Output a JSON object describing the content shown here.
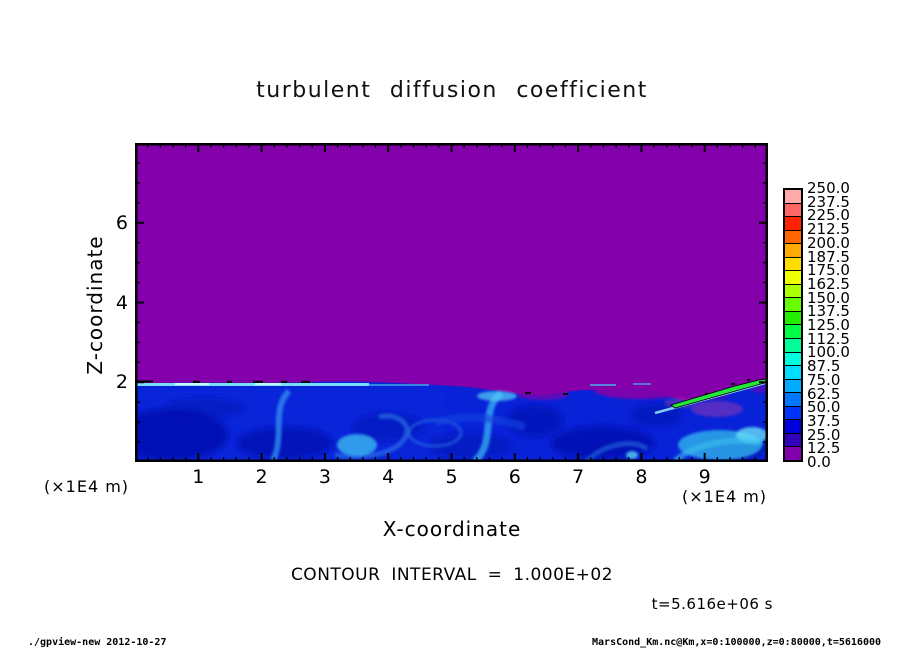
{
  "title": "turbulent diffusion coefficient",
  "x_axis": {
    "label": "X-coordinate",
    "unit": "(×1E4 m)",
    "tick_labels": [
      "1",
      "2",
      "3",
      "4",
      "5",
      "6",
      "7",
      "8",
      "9"
    ],
    "range": [
      0,
      10
    ],
    "minor_tick_interval": 0.2
  },
  "y_axis": {
    "label": "Z-coordinate",
    "unit": "(×1E4 m)",
    "tick_labels": [
      "6",
      "4",
      "2"
    ],
    "tick_values": [
      6,
      4,
      2
    ],
    "range": [
      0,
      8
    ],
    "minor_tick_interval": 0.5
  },
  "colorbar": {
    "labels_top_to_bottom": [
      "250.0",
      "237.5",
      "225.0",
      "212.5",
      "200.0",
      "187.5",
      "175.0",
      "162.5",
      "150.0",
      "137.5",
      "125.0",
      "112.5",
      "100.0",
      "87.5",
      "75.0",
      "62.5",
      "50.0",
      "37.5",
      "25.0",
      "12.5",
      "0.0"
    ],
    "cell_colors_top_to_bottom": [
      "#FFAAAA",
      "#FF6666",
      "#FF2200",
      "#FF6600",
      "#FFAA00",
      "#FFDD00",
      "#EEFF00",
      "#AAFF00",
      "#66FF00",
      "#22EE00",
      "#00FF44",
      "#00FF99",
      "#00FFDD",
      "#00DDFF",
      "#00AAFF",
      "#0077FF",
      "#0033FF",
      "#0000DD",
      "#3300BB",
      "#8400AB"
    ]
  },
  "annotations": {
    "contour_interval": "CONTOUR INTERVAL = 1.000E+02",
    "time": "t=5.616e+06 s"
  },
  "footer": {
    "left": "./gpview-new  2012-10-27",
    "right": "MarsCond_Km.nc@Km,x=0:100000,z=0:80000,t=5616000"
  },
  "colors": {
    "background": "#FFFFFF",
    "frame": "#000000",
    "field_background": "#8400AB",
    "band_base": "#0822D8",
    "eddy_dark": "#0010B2",
    "streak_cyan": "#7FE8FF",
    "streak_green": "#25E83C"
  },
  "chart_data": {
    "type": "heatmap",
    "title": "turbulent diffusion coefficient",
    "xlabel": "X-coordinate (×1E4 m)",
    "ylabel": "Z-coordinate (×1E4 m)",
    "x_range": [
      0,
      10
    ],
    "z_range": [
      0,
      8
    ],
    "time": "t=5.616e+06 s",
    "contour_interval": 100.0,
    "levels": [
      0.0,
      12.5,
      25.0,
      37.5,
      50.0,
      62.5,
      75.0,
      87.5,
      100.0,
      112.5,
      125.0,
      137.5,
      150.0,
      162.5,
      175.0,
      187.5,
      200.0,
      212.5,
      225.0,
      237.5,
      250.0
    ],
    "level_colors_low_to_high": [
      "#8400AB",
      "#3300BB",
      "#0000DD",
      "#0033FF",
      "#0077FF",
      "#00AAFF",
      "#00DDFF",
      "#00FFDD",
      "#00FF99",
      "#00FF44",
      "#22EE00",
      "#66FF00",
      "#AAFF00",
      "#EEFF00",
      "#FFDD00",
      "#FFAA00",
      "#FF6600",
      "#FF2200",
      "#FF6666",
      "#FFAAAA"
    ],
    "field_description": {
      "above_z_2e4m": "uniform lowest bin 0.0–12.5 (purple) over the whole domain above z≈2×1E4 m",
      "below_z_2e4m": "turbulent boundary layer, mostly 12.5–75 (blues), dark eddy cores ~12.5–25 near x≈0.5, 2.4, 6.3, 7.4–8.7; bright mixing arms ~62.5–100",
      "interface_streak": "thin cyan streak ~75–100 along z≈2 for x≈0–3.5 with short black contour segments",
      "max_streak": "bright green diagonal streak ~125–150 rising from (x≈8.5, z≈1.65) to the right edge at (x≈10, z≈2.0), outlined by black contour lines",
      "notable_bright_plumes_x": [
        2.3,
        3.5,
        5.6,
        9.3
      ],
      "purple_pockets_below_interface_x": [
        6.4,
        8.0,
        9.0
      ]
    }
  }
}
